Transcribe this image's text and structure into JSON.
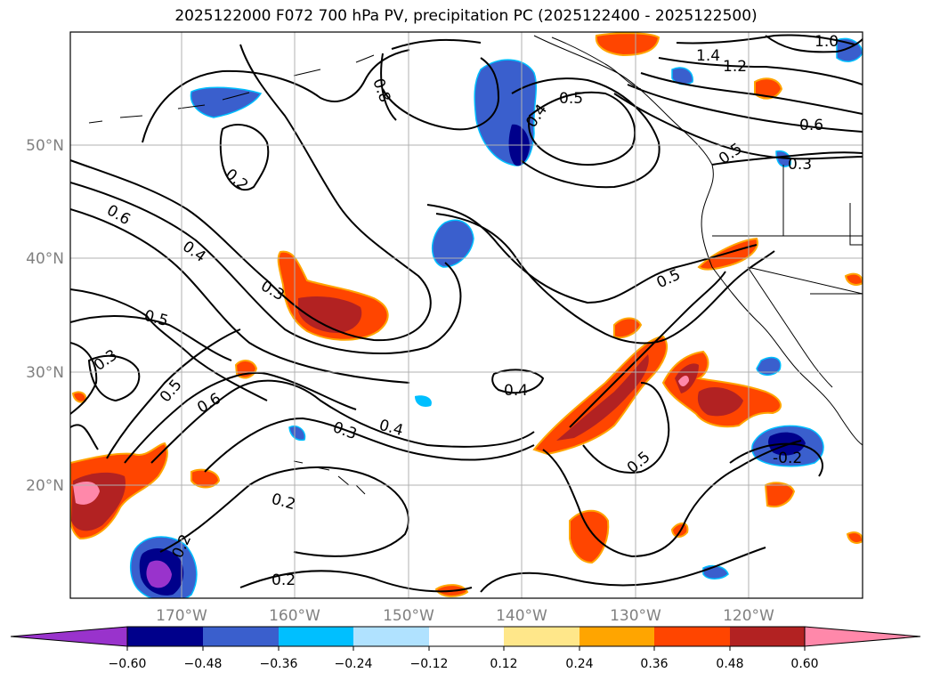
{
  "title": "2025122000 F072 700 hPa PV, precipitation PC (2025122400 - 2025122500)",
  "map": {
    "lat_ticks": [
      "50°N",
      "40°N",
      "30°N",
      "20°N"
    ],
    "lon_ticks": [
      "170°W",
      "160°W",
      "150°W",
      "140°W",
      "130°W",
      "120°W"
    ],
    "gridline_color": "#b0b0b0",
    "tick_label_color": "#808080"
  },
  "contour_labels": [
    {
      "text": "0.8"
    },
    {
      "text": "1.4"
    },
    {
      "text": "1.2"
    },
    {
      "text": "1.0"
    },
    {
      "text": "0.5"
    },
    {
      "text": "0.4"
    },
    {
      "text": "0.6"
    },
    {
      "text": "0.5"
    },
    {
      "text": "0.3"
    },
    {
      "text": "0.2"
    },
    {
      "text": "0.6"
    },
    {
      "text": "0.4"
    },
    {
      "text": "0.3"
    },
    {
      "text": "0.5"
    },
    {
      "text": "0.5"
    },
    {
      "text": "0.3"
    },
    {
      "text": "0.5"
    },
    {
      "text": "0.6"
    },
    {
      "text": "0.4"
    },
    {
      "text": "0.3"
    },
    {
      "text": "0.4"
    },
    {
      "text": "0.5"
    },
    {
      "text": "-0.2"
    },
    {
      "text": "0.2"
    },
    {
      "text": "0.2"
    },
    {
      "text": "0.2"
    }
  ],
  "colorbar": {
    "ticks": [
      "−0.60",
      "−0.48",
      "−0.36",
      "−0.24",
      "−0.12",
      "0.12",
      "0.24",
      "0.36",
      "0.48",
      "0.60"
    ],
    "colors": [
      "#9933cc",
      "#00008b",
      "#3a5fcd",
      "#00bfff",
      "#b0e2ff",
      "#ffffff",
      "#ffe78a",
      "#ffa500",
      "#ff4500",
      "#b22222",
      "#ff88aa"
    ]
  }
}
